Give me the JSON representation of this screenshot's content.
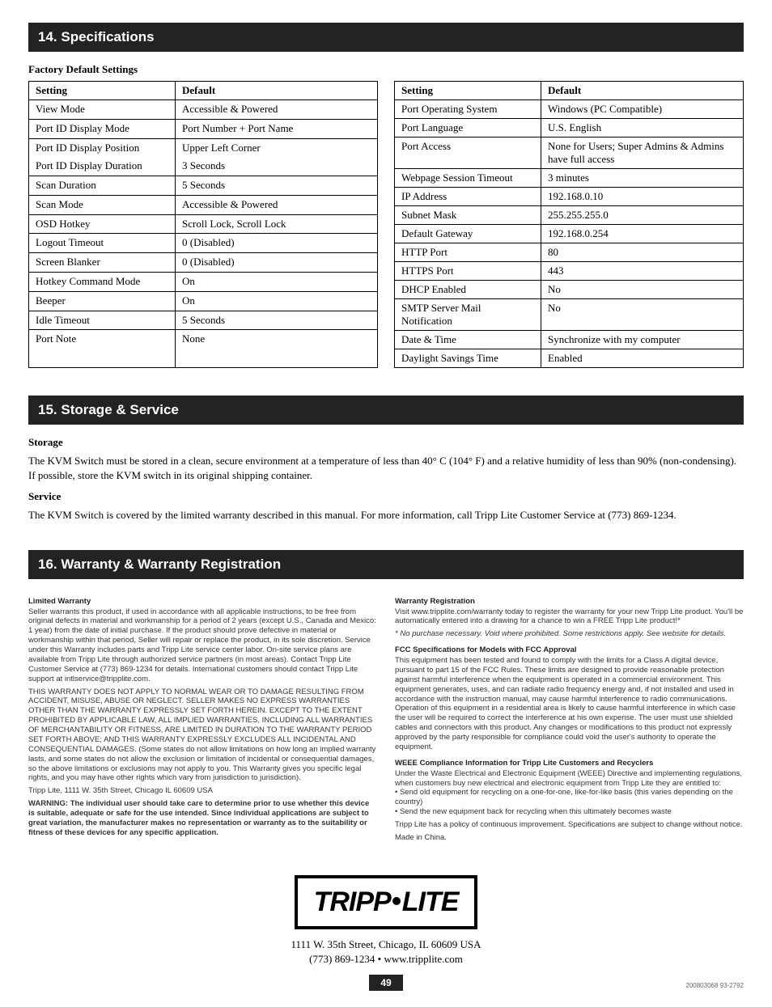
{
  "section14": {
    "title": "14. Specifications",
    "subheading": "Factory Default Settings",
    "table_left": {
      "headers": [
        "Setting",
        "Default"
      ],
      "rows": [
        {
          "setting": "View Mode",
          "default": "Accessible & Powered"
        },
        {
          "setting": "Port ID Display Mode",
          "default": "Port Number + Port Name"
        },
        {
          "setting": "Port ID Display Position",
          "default": "Upper Left Corner",
          "no_bottom": true
        },
        {
          "setting": "Port ID Display Duration",
          "default": "3 Seconds",
          "no_top": true
        },
        {
          "setting": "Scan Duration",
          "default": "5 Seconds"
        },
        {
          "setting": "Scan Mode",
          "default": "Accessible & Powered"
        },
        {
          "setting": "OSD Hotkey",
          "default": "Scroll Lock, Scroll Lock"
        },
        {
          "setting": "Logout Timeout",
          "default": "0 (Disabled)"
        },
        {
          "setting": "Screen Blanker",
          "default": "0 (Disabled)"
        },
        {
          "setting": "Hotkey Command Mode",
          "default": "On"
        },
        {
          "setting": "Beeper",
          "default": "On"
        },
        {
          "setting": "Idle Timeout",
          "default": "5 Seconds"
        },
        {
          "setting": "Port Note",
          "default": "None",
          "no_bottom": true
        },
        {
          "setting": "",
          "default": "",
          "no_top": true
        }
      ]
    },
    "table_right": {
      "headers": [
        "Setting",
        "Default"
      ],
      "rows": [
        {
          "setting": "Port Operating System",
          "default": "Windows (PC Compatible)"
        },
        {
          "setting": "Port Language",
          "default": "U.S. English"
        },
        {
          "setting": "Port Access",
          "default": "None for Users; Super Admins & Admins have full access",
          "tall": true
        },
        {
          "setting": "Webpage Session Timeout",
          "default": "3 minutes"
        },
        {
          "setting": "IP Address",
          "default": "192.168.0.10"
        },
        {
          "setting": "Subnet Mask",
          "default": "255.255.255.0"
        },
        {
          "setting": "Default Gateway",
          "default": "192.168.0.254"
        },
        {
          "setting": "HTTP Port",
          "default": "80"
        },
        {
          "setting": "HTTPS Port",
          "default": "443"
        },
        {
          "setting": "DHCP Enabled",
          "default": "No"
        },
        {
          "setting": "SMTP Server Mail Notification",
          "default": "No"
        },
        {
          "setting": "Date & Time",
          "default": "Synchronize with my computer"
        },
        {
          "setting": "Daylight Savings Time",
          "default": "Enabled"
        }
      ]
    }
  },
  "section15": {
    "title": "15. Storage & Service",
    "storage_head": "Storage",
    "storage_text": "The KVM Switch must be stored in a clean, secure environment at a temperature of less than 40° C (104° F) and a relative humidity of less than 90% (non-condensing). If possible, store the KVM switch in its original shipping container.",
    "service_head": "Service",
    "service_text": "The KVM Switch is covered by the limited warranty described in this manual. For more information, call Tripp Lite Customer Service at (773) 869-1234."
  },
  "section16": {
    "title": "16. Warranty & Warranty Registration",
    "left": {
      "h1": "Limited Warranty",
      "p1": "Seller warrants this product, if used in accordance with all applicable instructions, to be free from original defects in material and workmanship for a period of 2 years (except U.S., Canada and Mexico: 1 year) from the date of initial purchase. If the product should prove defective in material or workmanship within that period, Seller will repair or replace the product, in its sole discretion. Service under this Warranty includes parts and Tripp Lite service center labor. On-site service plans are available from Tripp Lite through authorized service partners (in most areas). Contact Tripp Lite Customer Service at (773) 869-1234 for details. International customers should contact Tripp Lite support at intlservice@tripplite.com.",
      "p2": "THIS WARRANTY DOES NOT APPLY TO NORMAL WEAR OR TO DAMAGE RESULTING FROM ACCIDENT, MISUSE, ABUSE OR NEGLECT. SELLER MAKES NO EXPRESS WARRANTIES OTHER THAN THE WARRANTY EXPRESSLY SET FORTH HEREIN. EXCEPT TO THE EXTENT PROHIBITED BY APPLICABLE LAW, ALL IMPLIED WARRANTIES, INCLUDING ALL WARRANTIES OF MERCHANTABILITY OR FITNESS, ARE LIMITED IN DURATION TO THE WARRANTY PERIOD SET FORTH ABOVE; AND THIS WARRANTY EXPRESSLY EXCLUDES ALL INCIDENTAL AND CONSEQUENTIAL DAMAGES. (Some states do not allow limitations on how long an implied warranty lasts, and some states do not allow the exclusion or limitation of incidental or consequential damages, so the above limitations or exclusions may not apply to you. This Warranty gives you specific legal rights, and you may have other rights which vary from jurisdiction to jurisdiction).",
      "p3": "Tripp Lite, 1111 W. 35th Street, Chicago IL 60609 USA",
      "p4": "WARNING: The individual user should take care to determine prior to use whether this device is suitable, adequate or safe for the use intended. Since individual applications are subject to great variation, the manufacturer makes no representation or warranty as to the suitability or fitness of these devices for any specific application."
    },
    "right": {
      "h1": "Warranty Registration",
      "p1": "Visit www.tripplite.com/warranty today to register the warranty for your new Tripp Lite product. You'll be automatically entered into a drawing for a chance to win a FREE Tripp Lite product!*",
      "p1_note": "* No purchase necessary. Void where prohibited. Some restrictions apply. See website for details.",
      "h2": "FCC Specifications for Models with FCC Approval",
      "p2": "This equipment has been tested and found to comply with the limits for a Class A digital device, pursuant to part 15 of the FCC Rules. These limits are designed to provide reasonable protection against harmful interference when the equipment is operated in a commercial environment. This equipment generates, uses, and can radiate radio frequency energy and, if not installed and used in accordance with the instruction manual, may cause harmful interference to radio communications. Operation of this equipment in a residential area is likely to cause harmful interference in which case the user will be required to correct the interference at his own expense. The user must use shielded cables and connectors with this product. Any changes or modifications to this product not expressly approved by the party responsible for compliance could void the user's authority to operate the equipment.",
      "h3": "WEEE Compliance Information for Tripp Lite Customers and Recyclers",
      "p3a": "Under the Waste Electrical and Electronic Equipment (WEEE) Directive and implementing regulations, when customers buy new electrical and electronic equipment from Tripp Lite they are entitled to:",
      "p3b": "• Send old equipment for recycling on a one-for-one, like-for-like basis (this varies depending on the country)",
      "p3c": "• Send the new equipment back for recycling when this ultimately becomes waste",
      "p4": "Tripp Lite has a policy of continuous improvement. Specifications are subject to change without notice.",
      "p5": "Made in China."
    }
  },
  "footer": {
    "logo_text_a": "TRIPP",
    "logo_text_b": "LITE",
    "addr_line1": "1111 W. 35th Street, Chicago, IL 60609 USA",
    "addr_line2": "(773) 869-1234 • www.tripplite.com",
    "page_num": "49",
    "doc_code": "200803068  93-2792"
  }
}
